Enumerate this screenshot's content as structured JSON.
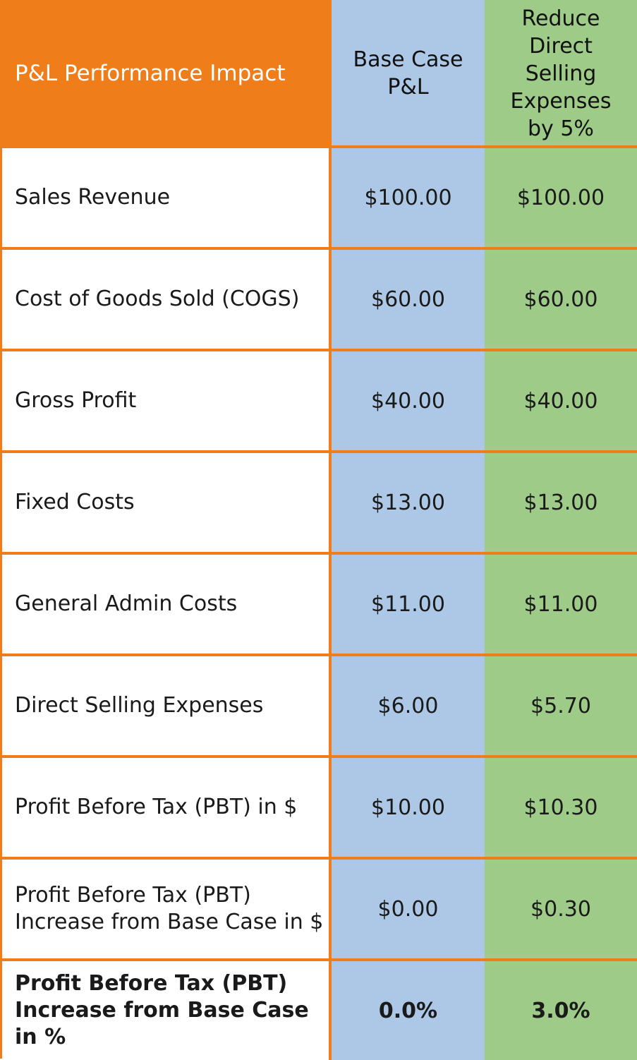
{
  "header": {
    "label": "P&L Performance Impact",
    "base_lines": [
      "Base Case",
      "P&L"
    ],
    "reduce_lines": [
      "Reduce",
      "Direct",
      "Selling",
      "Expenses",
      "by 5%"
    ]
  },
  "colors": {
    "header_accent": "#ef7d1a",
    "base_column": "#adc8e6",
    "reduce_column": "#9ecb87",
    "grid_lines": "#ef7d1a"
  },
  "rows": [
    {
      "label_lines": [
        "Sales Revenue"
      ],
      "base": "$100.00",
      "reduced": "$100.00"
    },
    {
      "label_lines": [
        "Cost of Goods Sold (COGS)"
      ],
      "base": "$60.00",
      "reduced": "$60.00"
    },
    {
      "label_lines": [
        "Gross Profit"
      ],
      "base": "$40.00",
      "reduced": "$40.00"
    },
    {
      "label_lines": [
        "Fixed Costs"
      ],
      "base": "$13.00",
      "reduced": "$13.00"
    },
    {
      "label_lines": [
        "General Admin Costs"
      ],
      "base": "$11.00",
      "reduced": "$11.00"
    },
    {
      "label_lines": [
        "Direct Selling Expenses"
      ],
      "base": "$6.00",
      "reduced": "$5.70"
    },
    {
      "label_lines": [
        "Profit Before Tax (PBT) in $"
      ],
      "base": "$10.00",
      "reduced": "$10.30"
    },
    {
      "label_lines": [
        "Profit Before Tax (PBT)",
        "Increase from Base Case in $"
      ],
      "base": "$0.00",
      "reduced": "$0.30"
    },
    {
      "label_lines": [
        "Profit Before Tax (PBT)",
        "Increase from Base Case",
        "in %"
      ],
      "base": "0.0%",
      "reduced": "3.0%"
    }
  ]
}
